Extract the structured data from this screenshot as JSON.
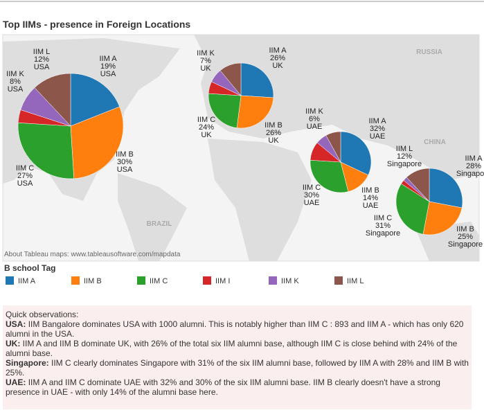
{
  "chart_data": {
    "type": "pie",
    "title": "Top IIMs - presence in Foreign Locations",
    "legend_title": "B school Tag",
    "series": [
      {
        "name": "IIM A",
        "color": "#1f77b4"
      },
      {
        "name": "IIM B",
        "color": "#ff7f0e"
      },
      {
        "name": "IIM C",
        "color": "#2ca02c"
      },
      {
        "name": "IIM I",
        "color": "#d62728"
      },
      {
        "name": "IIM K",
        "color": "#9467bd"
      },
      {
        "name": "IIM L",
        "color": "#8c564b"
      }
    ],
    "pies": [
      {
        "location": "USA",
        "values": [
          19,
          30,
          27,
          4,
          8,
          12
        ],
        "value_labels": [
          "19%",
          "30%",
          "27%",
          null,
          "8%",
          "12%"
        ]
      },
      {
        "location": "UK",
        "values": [
          26,
          26,
          24,
          6,
          7,
          11
        ],
        "value_labels": [
          "26%",
          "26%",
          "24%",
          null,
          "7%",
          null
        ]
      },
      {
        "location": "UAE",
        "values": [
          32,
          14,
          30,
          10,
          6,
          8
        ],
        "value_labels": [
          "32%",
          "14%",
          "30%",
          null,
          "6%",
          null
        ]
      },
      {
        "location": "Singapore",
        "values": [
          28,
          25,
          31,
          2,
          2,
          12
        ],
        "value_labels": [
          "28%",
          "25%",
          "31%",
          null,
          null,
          "12%"
        ]
      }
    ],
    "map_labels": [
      "RUSSIA",
      "CHINA",
      "BRAZIL"
    ],
    "attribution": "About Tableau maps: www.tableausoftware.com/mapdata"
  },
  "observations": {
    "heading": "Quick observations:",
    "items": [
      {
        "lead": "USA:",
        "text": "IIM Bangalore dominates USA with 1000 alumni. This is notably higher than IIM C : 893 and IIM A - which has only 620 alumni in the USA."
      },
      {
        "lead": "UK:",
        "text": "IIM A and IIM B dominate UK, with 26% of the total six IIM alumni base, although IIM C is close behind with 24% of the alumni base."
      },
      {
        "lead": "Singapore:",
        "text": "IIM C clearly dominates Singapore with 31% of the six IIM alumni base, followed by IIM A with 28% and IIM B with 25%."
      },
      {
        "lead": "UAE:",
        "text": "IIM A and IIM C dominate UAE with 32% and 30% of the six IIM alumni base. IIM B clearly doesn't have a strong presence in UAE - with only 14% of the alumni base here."
      }
    ]
  }
}
